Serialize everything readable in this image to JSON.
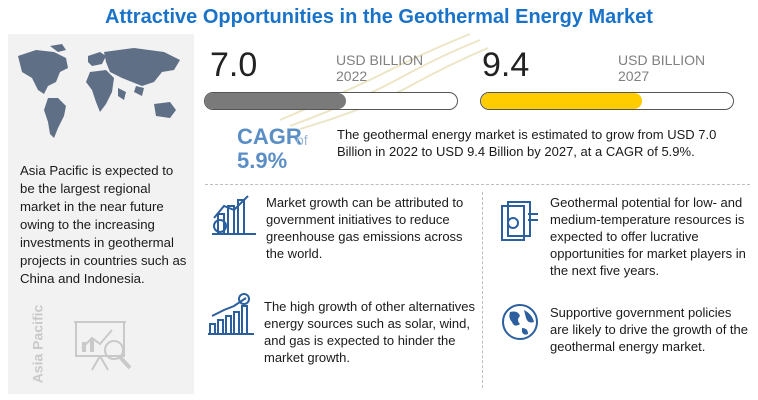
{
  "title": "Attractive Opportunities in the Geothermal Energy Market",
  "left_panel": {
    "region_text": "Asia Pacific is expected to be the largest regional market in the near future owing to the increasing investments in geothermal projects in countries such as China and Indonesia.",
    "vertical_label": "Asia Pacific"
  },
  "stats": {
    "start": {
      "value": "7.0",
      "unit": "USD BILLION",
      "year": "2022",
      "bar_fraction": 0.56,
      "bar_color": "#7a7a7a"
    },
    "end": {
      "value": "9.4",
      "unit": "USD BILLION",
      "year": "2027",
      "bar_fraction": 0.64,
      "bar_color": "#ffcc00"
    }
  },
  "cagr": {
    "label": "CAGR",
    "of": "of",
    "value": "5.9%"
  },
  "summary": "The geothermal energy market is estimated to grow from USD 7.0 Billion in 2022 to USD 9.4 Billion by 2027, at a CAGR of 5.9%.",
  "points": [
    {
      "icon": "bar-chart-growth-icon",
      "text": "Market growth can be attributed to government initiatives to reduce greenhouse gas emissions across the world."
    },
    {
      "icon": "money-stack-icon",
      "text": "Geothermal potential for low- and medium-temperature resources is expected to offer lucrative opportunities for market players in the next five years."
    },
    {
      "icon": "dollar-growth-chart-icon",
      "text": "The high growth of other alternatives energy sources such as solar, wind, and gas is expected to hinder the market growth."
    },
    {
      "icon": "globe-icon",
      "text": "Supportive government policies are likely to drive the growth of the geothermal energy market."
    }
  ],
  "colors": {
    "title": "#1a73c8",
    "cagr": "#5b8ec4",
    "icon_blue": "#2b5f9e"
  }
}
